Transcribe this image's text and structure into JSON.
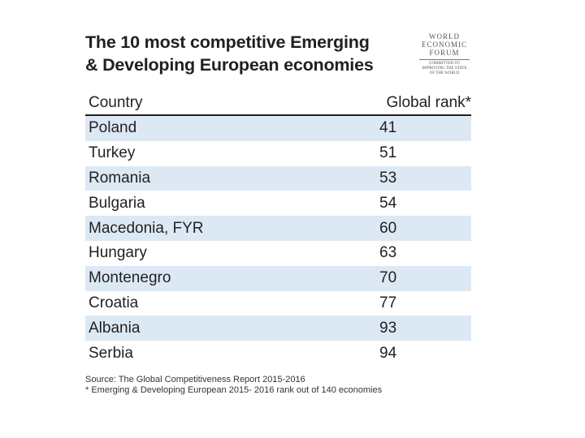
{
  "header": {
    "title_lines": [
      "The 10 most competitive Emerging",
      "& Developing European economies"
    ],
    "logo": {
      "name_lines": [
        "WORLD",
        "ECONOMIC",
        "FORUM"
      ],
      "tagline_lines": [
        "COMMITTED TO",
        "IMPROVING THE STATE",
        "OF THE WORLD"
      ]
    }
  },
  "table": {
    "columns": [
      "Country",
      "Global rank*"
    ],
    "rows": [
      [
        "Poland",
        41
      ],
      [
        "Turkey",
        51
      ],
      [
        "Romania",
        53
      ],
      [
        "Bulgaria",
        54
      ],
      [
        "Macedonia, FYR",
        60
      ],
      [
        "Hungary",
        63
      ],
      [
        "Montenegro",
        70
      ],
      [
        "Croatia",
        77
      ],
      [
        "Albania",
        93
      ],
      [
        "Serbia",
        94
      ]
    ]
  },
  "footer": {
    "source": "Source: The Global Competitiveness Report 2015-2016",
    "note": "* Emerging & Developing European 2015- 2016 rank out of 140 economies"
  }
}
